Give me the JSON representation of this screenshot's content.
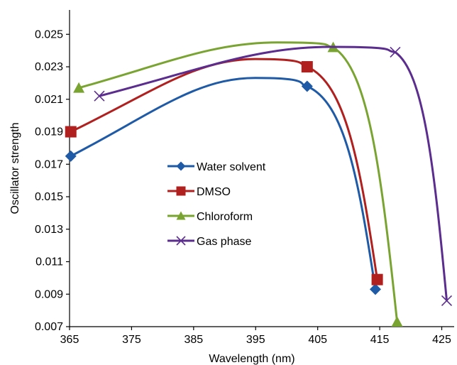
{
  "chart_data": {
    "type": "line",
    "xlabel": "Wavelength (nm)",
    "ylabel": "Oscillator strength",
    "xlim": [
      365,
      427
    ],
    "ylim": [
      0.007,
      0.0265
    ],
    "x_ticks": [
      "365",
      "375",
      "385",
      "395",
      "405",
      "415",
      "425"
    ],
    "y_ticks": [
      "0.007",
      "0.009",
      "0.011",
      "0.013",
      "0.015",
      "0.017",
      "0.019",
      "0.021",
      "0.023",
      "0.025"
    ],
    "grid": false,
    "legend_position": "center-left",
    "series": [
      {
        "name": "Water solvent",
        "color": "#1f5aa6",
        "marker": "diamond",
        "points": [
          [
            365.2,
            0.0175
          ],
          [
            403.3,
            0.0218
          ],
          [
            414.3,
            0.0093
          ]
        ]
      },
      {
        "name": "DMSO",
        "color": "#b0201f",
        "marker": "square",
        "points": [
          [
            365.2,
            0.019
          ],
          [
            403.3,
            0.023
          ],
          [
            414.6,
            0.0099
          ]
        ]
      },
      {
        "name": "Chloroform",
        "color": "#7aa432",
        "marker": "triangle",
        "points": [
          [
            366.5,
            0.0217
          ],
          [
            407.5,
            0.0242
          ],
          [
            417.8,
            0.0073
          ]
        ]
      },
      {
        "name": "Gas phase",
        "color": "#5b2d8e",
        "marker": "x",
        "points": [
          [
            369.8,
            0.0212
          ],
          [
            417.5,
            0.0239
          ],
          [
            425.8,
            0.0086
          ]
        ]
      }
    ]
  }
}
